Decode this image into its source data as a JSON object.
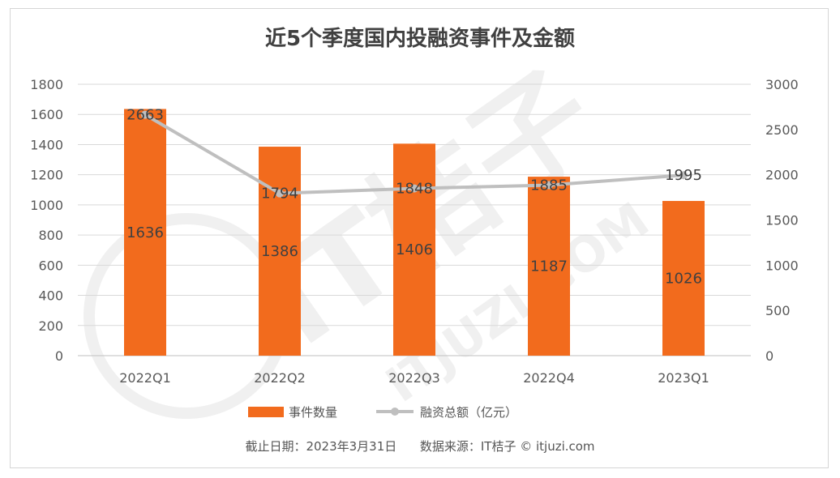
{
  "chart_data": {
    "type": "bar",
    "title": "近5个季度国内投融资事件及金额",
    "categories": [
      "2022Q1",
      "2022Q2",
      "2022Q3",
      "2022Q4",
      "2023Q1"
    ],
    "series": [
      {
        "name": "事件数量",
        "type": "bar",
        "axis": "left",
        "values": [
          1636,
          1386,
          1406,
          1187,
          1026
        ],
        "color": "#F26B1D"
      },
      {
        "name": "融资总额（亿元）",
        "type": "line",
        "axis": "right",
        "values": [
          2663,
          1794,
          1848,
          1885,
          1995
        ],
        "color": "#BFBFBF"
      }
    ],
    "y_left": {
      "min": 0,
      "max": 1800,
      "step": 200,
      "ticks": [
        "0",
        "200",
        "400",
        "600",
        "800",
        "1000",
        "1200",
        "1400",
        "1600",
        "1800"
      ]
    },
    "y_right": {
      "min": 0,
      "max": 3000,
      "step": 500,
      "ticks": [
        "0",
        "500",
        "1000",
        "1500",
        "2000",
        "2500",
        "3000"
      ]
    },
    "grid": true,
    "legend_position": "bottom"
  },
  "footer": {
    "note": "截止日期：2023年3月31日      数据来源：IT桔子 © itjuzi.com"
  },
  "watermark": {
    "text": "IT桔子",
    "subtext": "ITJUZI.COM"
  }
}
